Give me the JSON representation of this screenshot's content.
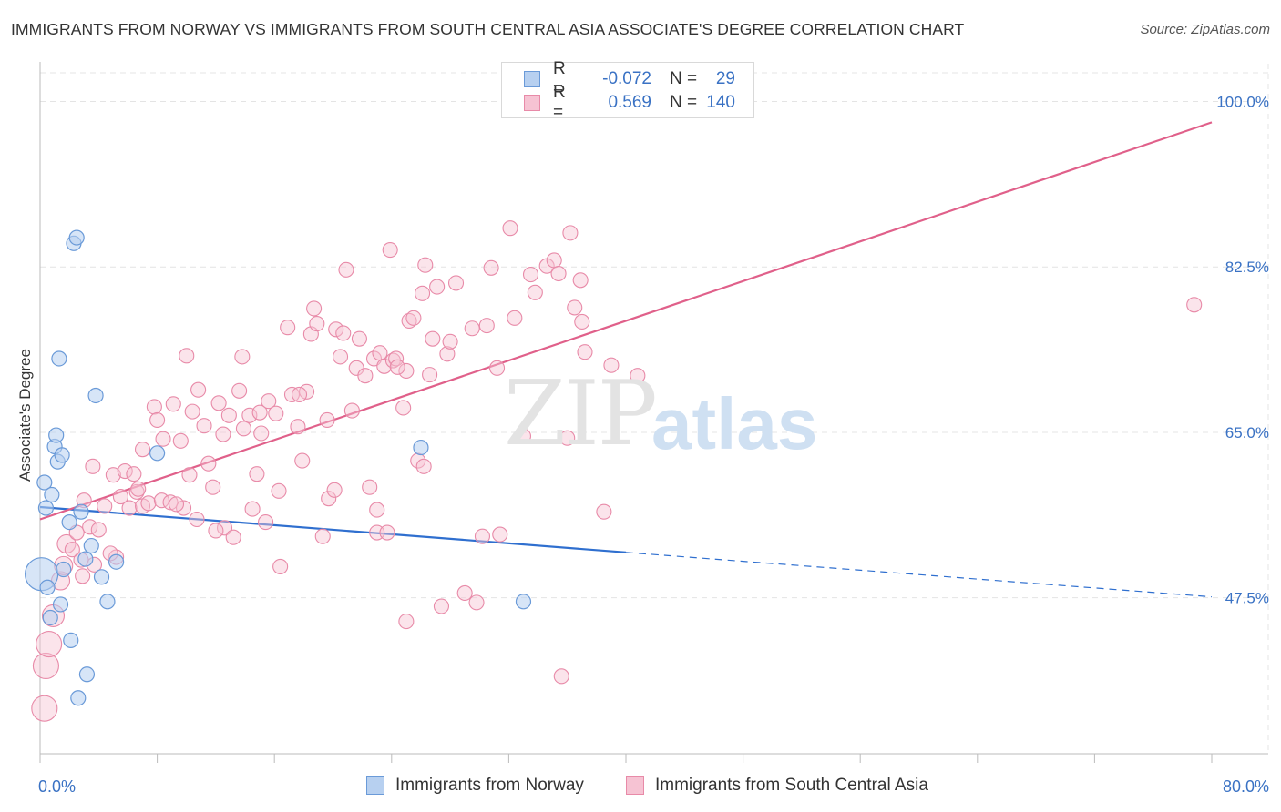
{
  "title": "IMMIGRANTS FROM NORWAY VS IMMIGRANTS FROM SOUTH CENTRAL ASIA ASSOCIATE'S DEGREE CORRELATION CHART",
  "source": "Source: ZipAtlas.com",
  "watermark": {
    "zip": "ZIP",
    "atlas": "atlas"
  },
  "legend_box": {
    "rows": [
      {
        "r_label": "R =",
        "r_value": "-0.072",
        "n_label": "N =",
        "n_value": "29"
      },
      {
        "r_label": "R =",
        "r_value": "0.569",
        "n_label": "N =",
        "n_value": "140"
      }
    ]
  },
  "colors": {
    "norway_fill": "#b7d0f0",
    "norway_stroke": "#6a9ad8",
    "norway_line": "#2f6fcf",
    "sca_fill": "#f6c3d3",
    "sca_stroke": "#e88aa8",
    "sca_line": "#e0608a",
    "axis_text": "#3a72c4",
    "grid": "#e4e4e4"
  },
  "chart_data": {
    "type": "scatter",
    "title": "IMMIGRANTS FROM NORWAY VS IMMIGRANTS FROM SOUTH CENTRAL ASIA ASSOCIATE'S DEGREE CORRELATION CHART",
    "xlabel": "",
    "ylabel": "Associate's Degree",
    "xlim": [
      0,
      80
    ],
    "ylim": [
      31,
      104
    ],
    "x_tick_labels": [
      "0.0%",
      "80.0%"
    ],
    "y_ticks": [
      47.5,
      65.0,
      82.5,
      100.0
    ],
    "y_tick_labels": [
      "47.5%",
      "65.0%",
      "82.5%",
      "100.0%"
    ],
    "grid": true,
    "series": [
      {
        "name": "Immigrants from Norway",
        "color": "#b7d0f0",
        "trend": {
          "x0": 0,
          "y0": 57.1,
          "x1": 40,
          "y1": 52.3,
          "dashed_to_x": 80,
          "dashed_to_y": 47.6
        },
        "points": [
          [
            0.1,
            50.0,
            18
          ],
          [
            0.3,
            59.7,
            8
          ],
          [
            0.4,
            57.0,
            8
          ],
          [
            0.8,
            58.4,
            8
          ],
          [
            1.0,
            63.5,
            8
          ],
          [
            1.1,
            64.7,
            8
          ],
          [
            1.2,
            61.9,
            8
          ],
          [
            1.5,
            62.6,
            8
          ],
          [
            1.3,
            72.8,
            8
          ],
          [
            2.3,
            85.0,
            8
          ],
          [
            2.5,
            85.6,
            8
          ],
          [
            2.0,
            55.5,
            8
          ],
          [
            2.8,
            56.6,
            8
          ],
          [
            3.5,
            53.0,
            8
          ],
          [
            3.8,
            68.9,
            8
          ],
          [
            4.2,
            49.7,
            8
          ],
          [
            1.4,
            46.8,
            8
          ],
          [
            0.7,
            45.4,
            8
          ],
          [
            2.1,
            43.0,
            8
          ],
          [
            3.2,
            39.4,
            8
          ],
          [
            2.6,
            36.9,
            8
          ],
          [
            4.6,
            47.1,
            8
          ],
          [
            5.2,
            51.3,
            8
          ],
          [
            8.0,
            62.8,
            8
          ],
          [
            26.0,
            63.4,
            8
          ],
          [
            33.0,
            47.1,
            8
          ],
          [
            1.6,
            50.5,
            8
          ],
          [
            0.5,
            48.6,
            8
          ],
          [
            3.1,
            51.6,
            8
          ]
        ]
      },
      {
        "name": "Immigrants from South Central Asia",
        "color": "#f6c3d3",
        "trend": {
          "x0": 0,
          "y0": 55.8,
          "x1": 80,
          "y1": 97.8
        },
        "points": [
          [
            0.3,
            35.8,
            14
          ],
          [
            0.4,
            40.3,
            14
          ],
          [
            0.6,
            42.6,
            14
          ],
          [
            0.9,
            45.6,
            12
          ],
          [
            1.4,
            49.3,
            10
          ],
          [
            1.6,
            50.9,
            10
          ],
          [
            1.8,
            53.2,
            10
          ],
          [
            2.2,
            52.6,
            8
          ],
          [
            2.5,
            54.4,
            8
          ],
          [
            2.8,
            51.5,
            8
          ],
          [
            3.0,
            57.8,
            8
          ],
          [
            3.4,
            55.0,
            8
          ],
          [
            3.7,
            51.0,
            8
          ],
          [
            4.0,
            54.7,
            8
          ],
          [
            4.4,
            57.2,
            8
          ],
          [
            3.6,
            61.4,
            8
          ],
          [
            5.0,
            60.5,
            8
          ],
          [
            5.5,
            58.2,
            8
          ],
          [
            5.2,
            51.8,
            8
          ],
          [
            5.8,
            60.9,
            8
          ],
          [
            6.1,
            57.0,
            8
          ],
          [
            6.4,
            60.6,
            8
          ],
          [
            6.6,
            58.7,
            8
          ],
          [
            7.0,
            57.2,
            8
          ],
          [
            7.4,
            57.5,
            8
          ],
          [
            7.0,
            63.2,
            8
          ],
          [
            7.8,
            67.7,
            8
          ],
          [
            8.0,
            66.3,
            8
          ],
          [
            8.3,
            57.8,
            8
          ],
          [
            8.4,
            64.3,
            8
          ],
          [
            8.9,
            57.6,
            8
          ],
          [
            9.1,
            68.0,
            8
          ],
          [
            9.6,
            64.1,
            8
          ],
          [
            9.8,
            57.0,
            8
          ],
          [
            10.2,
            60.5,
            8
          ],
          [
            10.4,
            67.2,
            8
          ],
          [
            10.7,
            55.8,
            8
          ],
          [
            10.0,
            73.1,
            8
          ],
          [
            10.8,
            69.5,
            8
          ],
          [
            11.2,
            65.7,
            8
          ],
          [
            11.5,
            61.7,
            8
          ],
          [
            11.8,
            59.2,
            8
          ],
          [
            12.2,
            68.1,
            8
          ],
          [
            12.5,
            64.8,
            8
          ],
          [
            12.6,
            54.9,
            8
          ],
          [
            12.9,
            66.8,
            8
          ],
          [
            13.2,
            53.9,
            8
          ],
          [
            13.6,
            69.4,
            8
          ],
          [
            13.9,
            65.4,
            8
          ],
          [
            14.3,
            66.8,
            8
          ],
          [
            14.5,
            56.9,
            8
          ],
          [
            13.8,
            73.0,
            8
          ],
          [
            14.8,
            60.6,
            8
          ],
          [
            15.0,
            67.1,
            8
          ],
          [
            15.4,
            55.5,
            8
          ],
          [
            15.6,
            68.3,
            8
          ],
          [
            16.1,
            67.0,
            8
          ],
          [
            15.1,
            64.9,
            8
          ],
          [
            16.3,
            58.8,
            8
          ],
          [
            16.4,
            50.8,
            8
          ],
          [
            16.9,
            76.1,
            8
          ],
          [
            17.2,
            69.0,
            8
          ],
          [
            17.6,
            65.6,
            8
          ],
          [
            17.9,
            62.0,
            8
          ],
          [
            18.2,
            69.3,
            8
          ],
          [
            17.7,
            69.0,
            8
          ],
          [
            18.5,
            75.4,
            8
          ],
          [
            18.7,
            78.1,
            8
          ],
          [
            18.9,
            76.5,
            8
          ],
          [
            19.3,
            54.0,
            8
          ],
          [
            19.6,
            66.3,
            8
          ],
          [
            19.7,
            58.0,
            8
          ],
          [
            20.2,
            75.9,
            8
          ],
          [
            20.5,
            73.0,
            8
          ],
          [
            20.9,
            82.2,
            8
          ],
          [
            20.7,
            75.5,
            8
          ],
          [
            21.3,
            67.3,
            8
          ],
          [
            21.6,
            71.8,
            8
          ],
          [
            21.8,
            74.9,
            8
          ],
          [
            22.2,
            71.0,
            8
          ],
          [
            22.5,
            59.2,
            8
          ],
          [
            22.8,
            72.8,
            8
          ],
          [
            23.0,
            56.8,
            8
          ],
          [
            23.2,
            73.4,
            8
          ],
          [
            23.5,
            72.0,
            8
          ],
          [
            23.0,
            54.4,
            8
          ],
          [
            23.7,
            54.4,
            8
          ],
          [
            23.9,
            84.3,
            8
          ],
          [
            24.1,
            72.6,
            8
          ],
          [
            24.3,
            72.8,
            8
          ],
          [
            24.8,
            67.6,
            8
          ],
          [
            25.0,
            71.5,
            8
          ],
          [
            25.2,
            76.8,
            8
          ],
          [
            25.5,
            77.1,
            8
          ],
          [
            25.8,
            62.0,
            8
          ],
          [
            24.4,
            71.9,
            8
          ],
          [
            26.1,
            79.7,
            8
          ],
          [
            26.3,
            82.7,
            8
          ],
          [
            26.6,
            71.1,
            8
          ],
          [
            26.8,
            74.9,
            8
          ],
          [
            27.1,
            80.4,
            8
          ],
          [
            25.0,
            45.0,
            8
          ],
          [
            26.2,
            61.4,
            8
          ],
          [
            27.4,
            46.6,
            8
          ],
          [
            27.8,
            73.3,
            8
          ],
          [
            28.0,
            74.6,
            8
          ],
          [
            28.4,
            80.8,
            8
          ],
          [
            29.0,
            48.0,
            8
          ],
          [
            29.5,
            76.0,
            8
          ],
          [
            29.8,
            47.0,
            8
          ],
          [
            30.2,
            54.0,
            8
          ],
          [
            30.5,
            76.3,
            8
          ],
          [
            30.8,
            82.4,
            8
          ],
          [
            31.2,
            71.8,
            8
          ],
          [
            31.4,
            54.2,
            8
          ],
          [
            32.1,
            86.6,
            8
          ],
          [
            32.4,
            77.1,
            8
          ],
          [
            33.0,
            64.6,
            8
          ],
          [
            33.5,
            81.7,
            8
          ],
          [
            33.8,
            79.8,
            8
          ],
          [
            34.6,
            82.6,
            8
          ],
          [
            35.1,
            83.2,
            8
          ],
          [
            35.4,
            81.8,
            8
          ],
          [
            35.6,
            39.2,
            8
          ],
          [
            36.0,
            64.4,
            8
          ],
          [
            36.2,
            86.1,
            8
          ],
          [
            36.5,
            78.2,
            8
          ],
          [
            36.9,
            81.1,
            8
          ],
          [
            37.0,
            76.7,
            8
          ],
          [
            37.2,
            73.5,
            8
          ],
          [
            38.5,
            56.6,
            8
          ],
          [
            39.0,
            72.1,
            8
          ],
          [
            40.8,
            71.0,
            8
          ],
          [
            78.8,
            78.5,
            8
          ],
          [
            20.1,
            58.9,
            8
          ],
          [
            12.0,
            54.6,
            8
          ],
          [
            9.3,
            57.4,
            8
          ],
          [
            6.7,
            59.0,
            8
          ],
          [
            4.8,
            52.2,
            8
          ],
          [
            2.9,
            49.8,
            8
          ]
        ]
      }
    ]
  },
  "bottom_legend": [
    {
      "label": "Immigrants from Norway"
    },
    {
      "label": "Immigrants from South Central Asia"
    }
  ]
}
